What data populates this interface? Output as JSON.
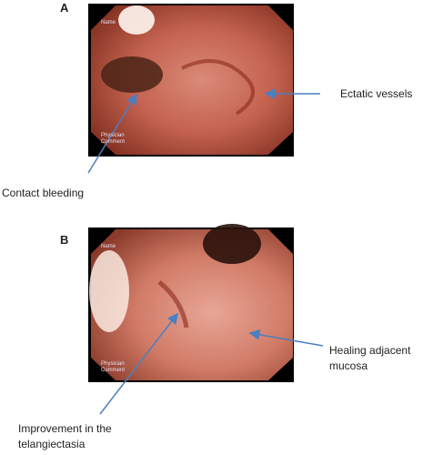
{
  "panels": [
    {
      "label": "A",
      "overlay": [
        "Name",
        "Physician",
        "Comment"
      ],
      "annotations": [
        "Ectatic vessels",
        "Contact bleeding"
      ]
    },
    {
      "label": "B",
      "overlay": [
        "Name",
        "Physician",
        "Comment"
      ],
      "annotations": [
        "Healing adjacent mucosa",
        "Improvement in the telangiectasia"
      ]
    }
  ]
}
